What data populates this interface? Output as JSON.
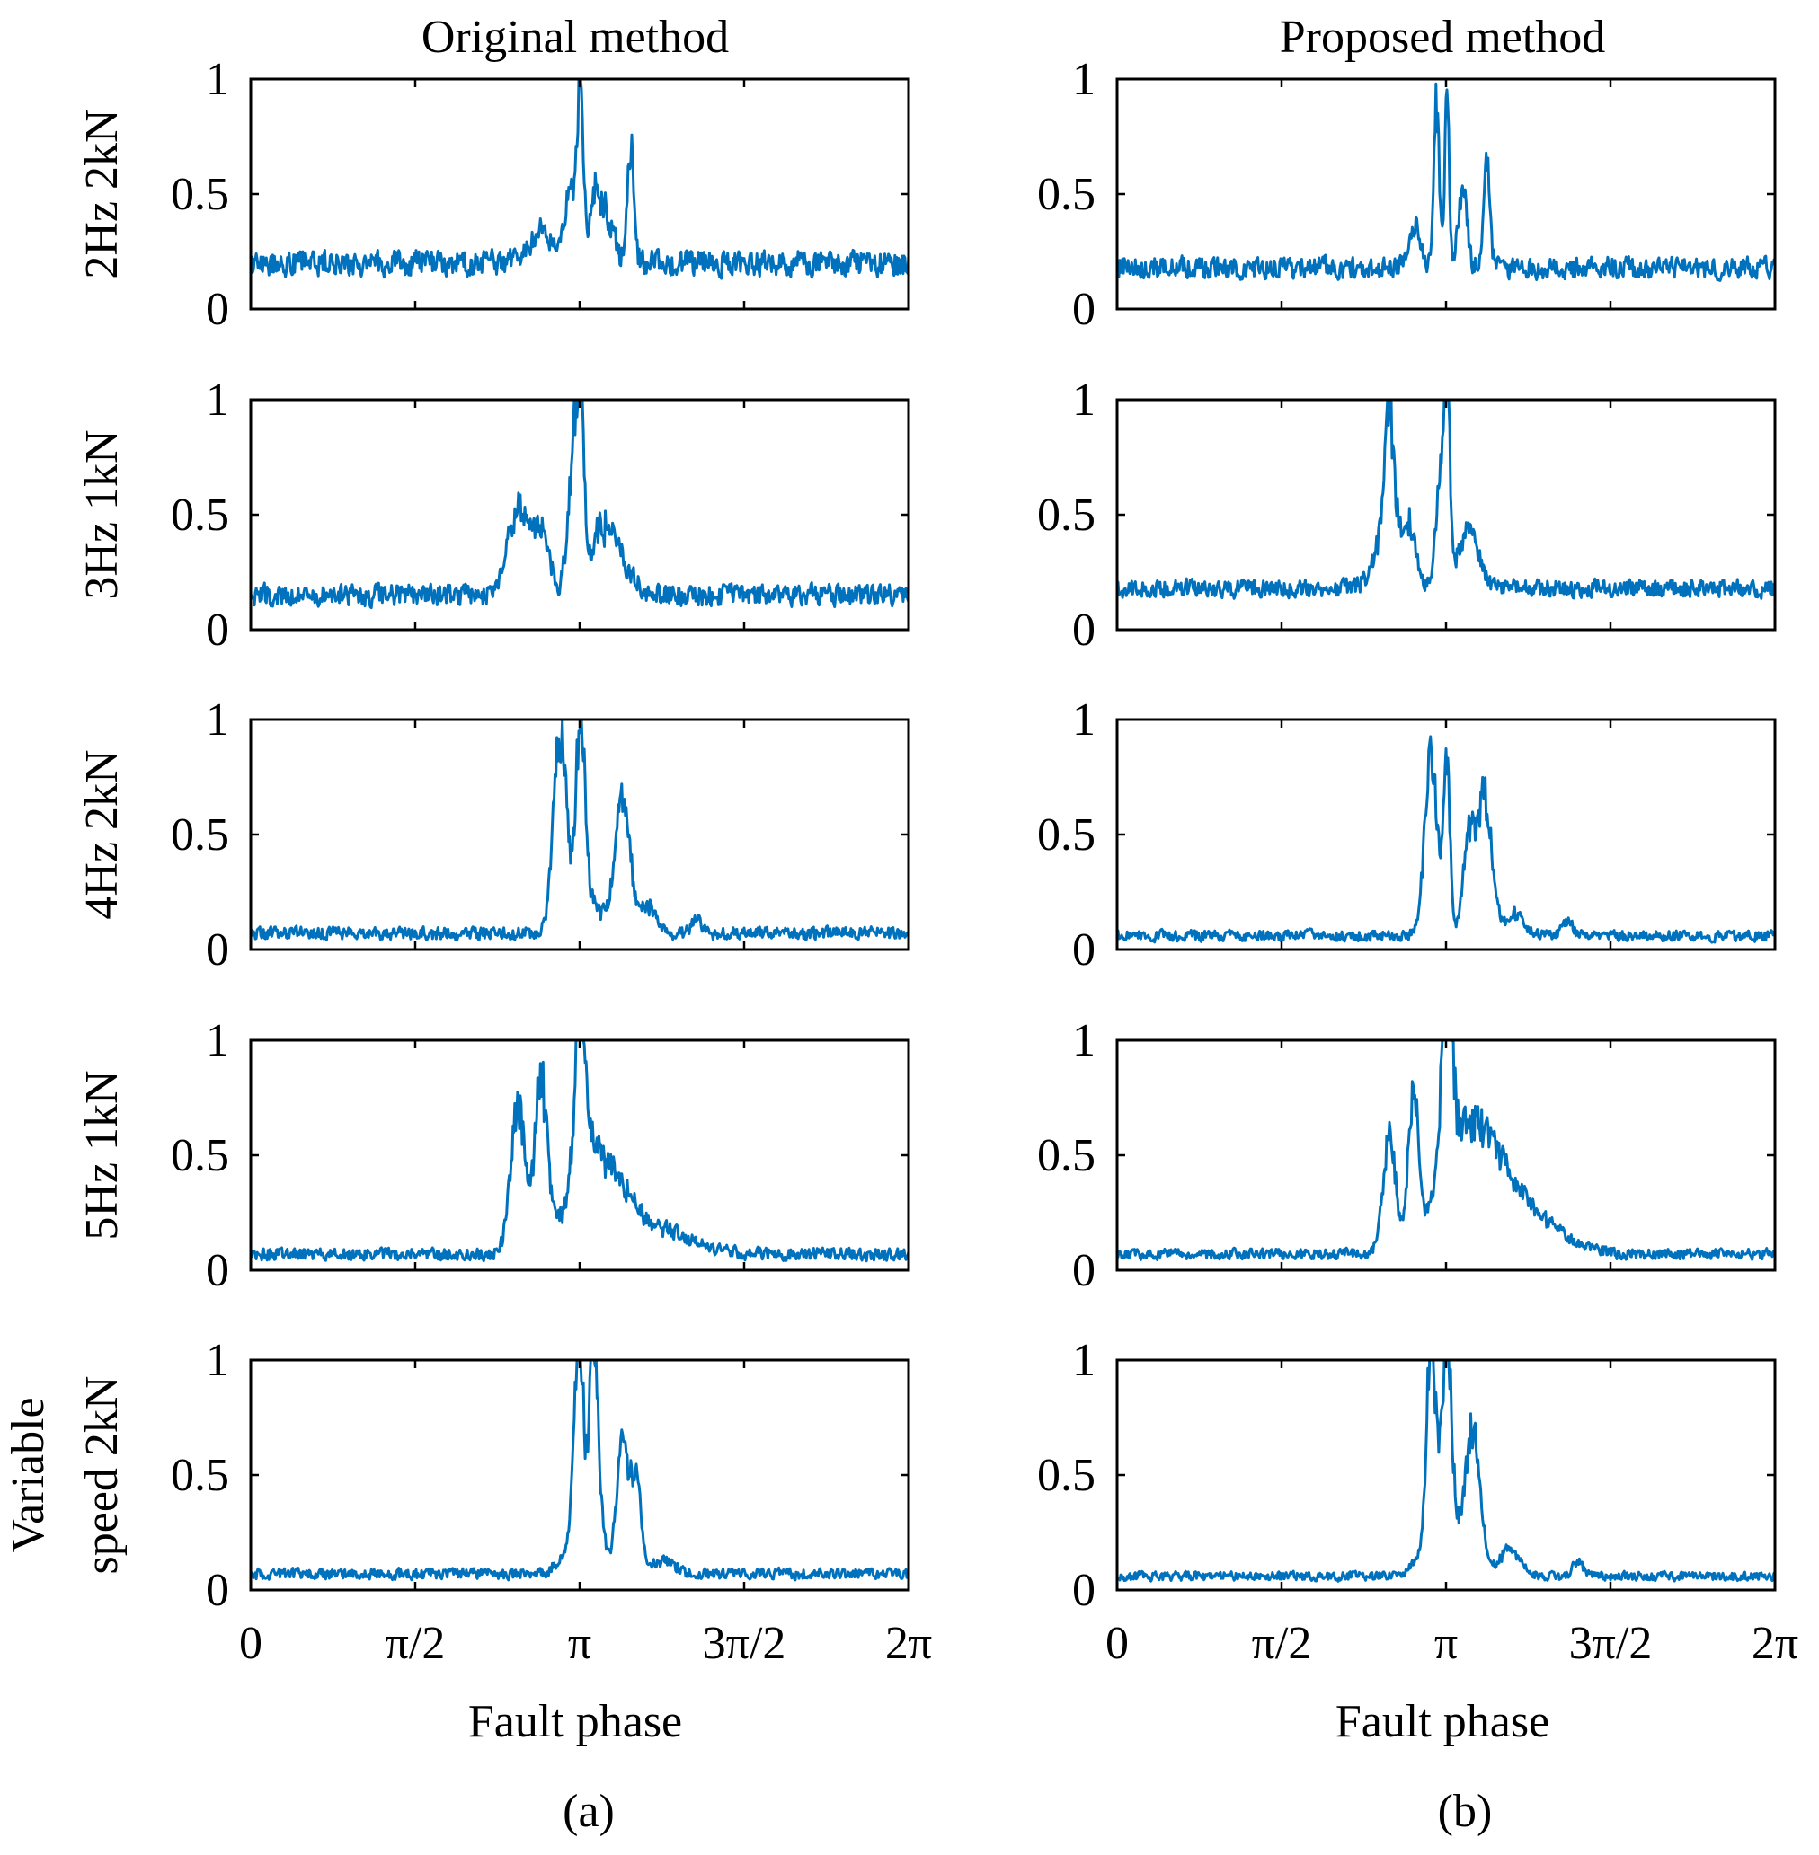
{
  "line_color": "#0072BD",
  "chart_data": {
    "type": "line",
    "title": "",
    "xlabel": "Fault phase",
    "xlim": [
      0,
      6.2832
    ],
    "ylim": [
      0,
      1
    ],
    "x_ticks": [
      0,
      1.5708,
      3.1416,
      4.7124,
      6.2832
    ],
    "x_tick_labels": [
      "0",
      "π/2",
      "π",
      "3π/2",
      "2π"
    ],
    "y_ticks": [
      0,
      0.5,
      1
    ],
    "y_tick_labels": [
      "0",
      "0.5",
      "1"
    ],
    "columns": [
      {
        "title": "Original method",
        "label": "(a)"
      },
      {
        "title": "Proposed method",
        "label": "(b)"
      }
    ],
    "rows": [
      {
        "ylabel": [
          "2Hz 2kN"
        ],
        "original": {
          "noise_level": 0.2,
          "noise_amp": 0.07,
          "peaks": [
            {
              "x": 2.78,
              "h": 0.12,
              "w": 0.12
            },
            {
              "x": 3.06,
              "h": 0.35,
              "w": 0.05
            },
            {
              "x": 3.15,
              "h": 0.8,
              "w": 0.025
            },
            {
              "x": 3.28,
              "h": 0.3,
              "w": 0.05
            },
            {
              "x": 3.4,
              "h": 0.22,
              "w": 0.06
            },
            {
              "x": 3.63,
              "h": 0.5,
              "w": 0.03
            }
          ]
        },
        "proposed": {
          "noise_level": 0.18,
          "noise_amp": 0.06,
          "peaks": [
            {
              "x": 2.85,
              "h": 0.2,
              "w": 0.05
            },
            {
              "x": 3.05,
              "h": 0.72,
              "w": 0.025
            },
            {
              "x": 3.15,
              "h": 0.82,
              "w": 0.02
            },
            {
              "x": 3.3,
              "h": 0.38,
              "w": 0.04
            },
            {
              "x": 3.53,
              "h": 0.45,
              "w": 0.03
            }
          ]
        }
      },
      {
        "ylabel": [
          "3Hz 1kN"
        ],
        "original": {
          "noise_level": 0.15,
          "noise_amp": 0.06,
          "peaks": [
            {
              "x": 2.55,
              "h": 0.38,
              "w": 0.1
            },
            {
              "x": 2.78,
              "h": 0.28,
              "w": 0.08
            },
            {
              "x": 3.08,
              "h": 0.6,
              "w": 0.05
            },
            {
              "x": 3.15,
              "h": 0.75,
              "w": 0.03
            },
            {
              "x": 3.4,
              "h": 0.3,
              "w": 0.15
            }
          ]
        },
        "proposed": {
          "noise_level": 0.18,
          "noise_amp": 0.05,
          "peaks": [
            {
              "x": 2.6,
              "h": 0.3,
              "w": 0.12
            },
            {
              "x": 2.6,
              "h": 0.5,
              "w": 0.04
            },
            {
              "x": 2.8,
              "h": 0.22,
              "w": 0.05
            },
            {
              "x": 3.1,
              "h": 0.5,
              "w": 0.05
            },
            {
              "x": 3.15,
              "h": 0.75,
              "w": 0.025
            },
            {
              "x": 3.35,
              "h": 0.25,
              "w": 0.1
            }
          ]
        }
      },
      {
        "ylabel": [
          "4Hz 2kN"
        ],
        "original": {
          "noise_level": 0.07,
          "noise_amp": 0.035,
          "peaks": [
            {
              "x": 2.95,
              "h": 0.8,
              "w": 0.06
            },
            {
              "x": 3.15,
              "h": 0.8,
              "w": 0.04
            },
            {
              "x": 3.15,
              "h": 0.2,
              "w": 0.15
            },
            {
              "x": 3.55,
              "h": 0.6,
              "w": 0.07
            },
            {
              "x": 3.8,
              "h": 0.12,
              "w": 0.08
            },
            {
              "x": 4.25,
              "h": 0.07,
              "w": 0.04
            }
          ]
        },
        "proposed": {
          "noise_level": 0.06,
          "noise_amp": 0.03,
          "peaks": [
            {
              "x": 3.0,
              "h": 0.78,
              "w": 0.06
            },
            {
              "x": 3.15,
              "h": 0.75,
              "w": 0.03
            },
            {
              "x": 3.35,
              "h": 0.35,
              "w": 0.05
            },
            {
              "x": 3.5,
              "h": 0.6,
              "w": 0.08
            },
            {
              "x": 3.8,
              "h": 0.1,
              "w": 0.08
            },
            {
              "x": 4.3,
              "h": 0.06,
              "w": 0.05
            }
          ]
        }
      },
      {
        "ylabel": [
          "5Hz 1kN"
        ],
        "original": {
          "noise_level": 0.07,
          "noise_amp": 0.035,
          "peaks": [
            {
              "x": 2.55,
              "h": 0.62,
              "w": 0.07
            },
            {
              "x": 2.77,
              "h": 0.72,
              "w": 0.06
            },
            {
              "x": 3.15,
              "h": 0.82,
              "w": 0.05
            },
            {
              "x": 3.3,
              "h": 0.42,
              "w": 0.25
            },
            {
              "x": 3.9,
              "h": 0.1,
              "w": 0.3
            }
          ]
        },
        "proposed": {
          "noise_level": 0.07,
          "noise_amp": 0.03,
          "peaks": [
            {
              "x": 2.6,
              "h": 0.48,
              "w": 0.06
            },
            {
              "x": 2.83,
              "h": 0.62,
              "w": 0.05
            },
            {
              "x": 3.15,
              "h": 0.82,
              "w": 0.05
            },
            {
              "x": 3.4,
              "h": 0.55,
              "w": 0.3
            },
            {
              "x": 4.0,
              "h": 0.12,
              "w": 0.3
            }
          ]
        }
      },
      {
        "ylabel": [
          "Variable",
          "speed 2kN"
        ],
        "original": {
          "noise_level": 0.07,
          "noise_amp": 0.03,
          "peaks": [
            {
              "x": 3.13,
              "h": 0.88,
              "w": 0.04
            },
            {
              "x": 3.28,
              "h": 0.86,
              "w": 0.04
            },
            {
              "x": 3.2,
              "h": 0.25,
              "w": 0.15
            },
            {
              "x": 3.55,
              "h": 0.58,
              "w": 0.05
            },
            {
              "x": 3.68,
              "h": 0.42,
              "w": 0.05
            },
            {
              "x": 3.95,
              "h": 0.06,
              "w": 0.1
            }
          ]
        },
        "proposed": {
          "noise_level": 0.06,
          "noise_amp": 0.025,
          "peaks": [
            {
              "x": 3.0,
              "h": 0.85,
              "w": 0.04
            },
            {
              "x": 3.15,
              "h": 0.85,
              "w": 0.04
            },
            {
              "x": 3.1,
              "h": 0.3,
              "w": 0.15
            },
            {
              "x": 3.4,
              "h": 0.6,
              "w": 0.07
            },
            {
              "x": 3.75,
              "h": 0.12,
              "w": 0.1
            },
            {
              "x": 4.4,
              "h": 0.06,
              "w": 0.05
            }
          ]
        }
      }
    ]
  }
}
